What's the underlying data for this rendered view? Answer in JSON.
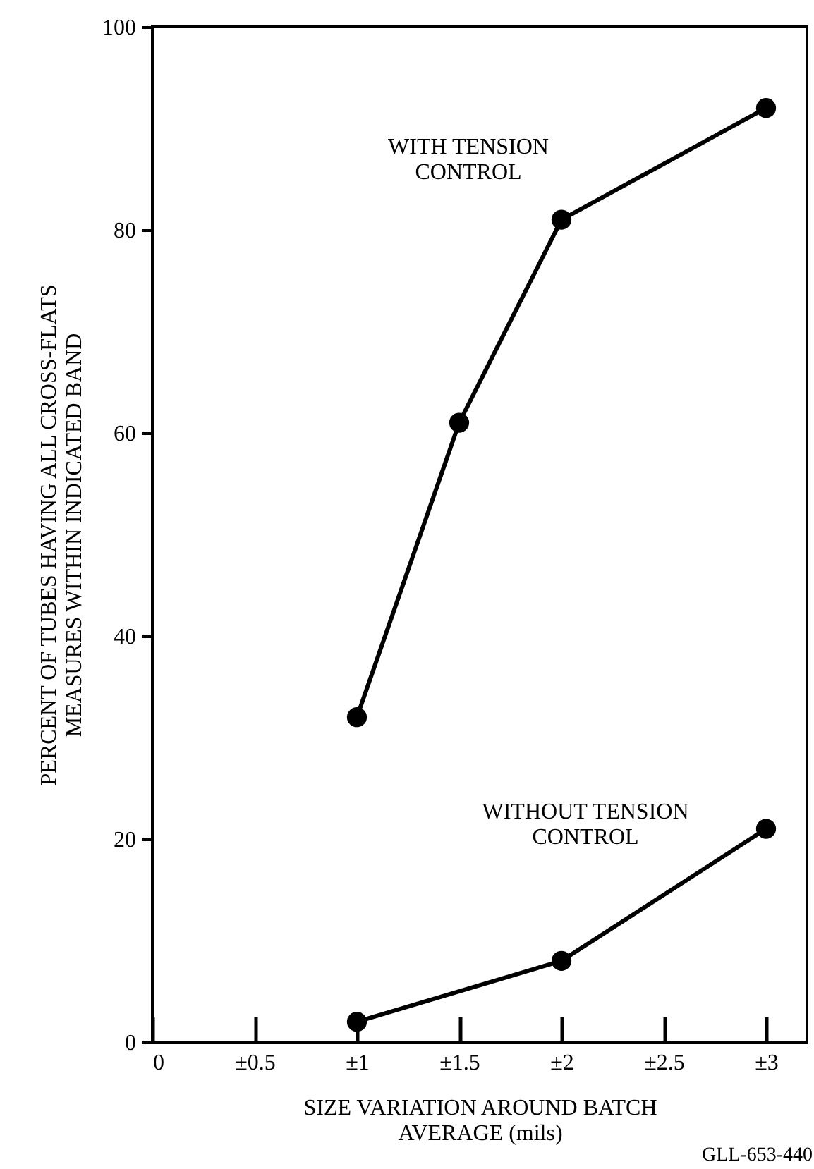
{
  "chart_data": {
    "type": "line",
    "xlabel": "SIZE VARIATION AROUND BATCH AVERAGE (mils)",
    "ylabel": "PERCENT OF TUBES HAVING ALL CROSS-FLATS MEASURES WITHIN INDICATED BAND",
    "xlim": [
      0,
      3.2
    ],
    "xticks": [
      0,
      {
        "value": 0.5,
        "label": "±0.5"
      },
      {
        "value": 1,
        "label": "±1"
      },
      {
        "value": 1.5,
        "label": "±1.5"
      },
      {
        "value": 2,
        "label": "±2"
      },
      {
        "value": 2.5,
        "label": "±2.5"
      },
      {
        "value": 3,
        "label": "±3"
      }
    ],
    "ylim": [
      0,
      100
    ],
    "yticks": [
      0,
      20,
      40,
      60,
      80,
      100
    ],
    "grid": false,
    "marker": "circle",
    "line_style": "solid",
    "annotations": [
      "GLL-653-440"
    ],
    "series": [
      {
        "name": "WITH TENSION CONTROL",
        "color": "#000000",
        "x": [
          1,
          1.5,
          2,
          3
        ],
        "values": [
          32,
          61,
          81,
          92
        ]
      },
      {
        "name": "WITHOUT TENSION CONTROL",
        "color": "#000000",
        "x": [
          1,
          2,
          3
        ],
        "values": [
          2,
          8,
          21
        ]
      }
    ]
  }
}
